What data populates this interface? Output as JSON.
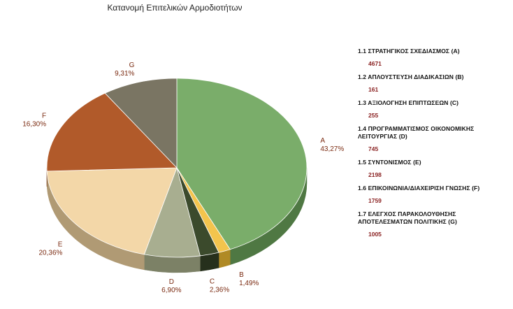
{
  "chart_data": {
    "type": "pie",
    "title": "Κατανομή Επιτελικών Αρμοδιοτήτων",
    "slices": [
      {
        "key": "A",
        "label": "1.1 ΣΤΡΑΤΗΓΙΚΟΣ ΣΧΕΔΙΑΣΜΟΣ (A)",
        "value": 4671,
        "percent_label": "43,27%",
        "color": "#7aad6a",
        "side_color": "#4f7843"
      },
      {
        "key": "B",
        "label": "1.2 ΑΠΛΟΥΣΤΕΥΣΗ ΔΙΑΔΙΚΑΣΙΩΝ (B)",
        "value": 161,
        "percent_label": "1,49%",
        "color": "#f3c44d",
        "side_color": "#b08a25"
      },
      {
        "key": "C",
        "label": "1.3 ΑΞΙΟΛΟΓΗΣΗ ΕΠΙΠΤΩΣΕΩΝ (C)",
        "value": 255,
        "percent_label": "2,36%",
        "color": "#3b4a2c",
        "side_color": "#26301c"
      },
      {
        "key": "D",
        "label": "1.4 ΠΡΟΓΡΑΜΜΑΤΙΣΜΟΣ ΟΙΚΟΝΟΜΙΚΗΣ ΛΕΙΤΟΥΡΓΙΑΣ (D)",
        "value": 745,
        "percent_label": "6,90%",
        "color": "#a8ae90",
        "side_color": "#7c8166"
      },
      {
        "key": "E",
        "label": "1.5 ΣΥΝΤΟΝΙΣΜΟΣ (E)",
        "value": 2198,
        "percent_label": "20,36%",
        "color": "#f3d7a8",
        "side_color": "#b09a74"
      },
      {
        "key": "F",
        "label": "1.6 ΕΠΙΚΟΙΝΩΝΙΑ/ΔΙΑΧΕΙΡΙΣΗ ΓΝΩΣΗΣ (F)",
        "value": 1759,
        "percent_label": "16,30%",
        "color": "#b15a2a",
        "side_color": "#7a3b18"
      },
      {
        "key": "G",
        "label": "1.7 ΕΛΕΓΧΟΣ ΠΑΡΑΚΟΛΟΥΘΗΣΗΣ ΑΠΟΤΕΛΕΣΜΑΤΩΝ ΠΟΛΙΤΙΚΗΣ (G)",
        "value": 1005,
        "percent_label": "9,31%",
        "color": "#7a7563",
        "side_color": "#524e41"
      }
    ],
    "start_angle_deg": -90,
    "direction": "clockwise",
    "legend_position": "right"
  }
}
